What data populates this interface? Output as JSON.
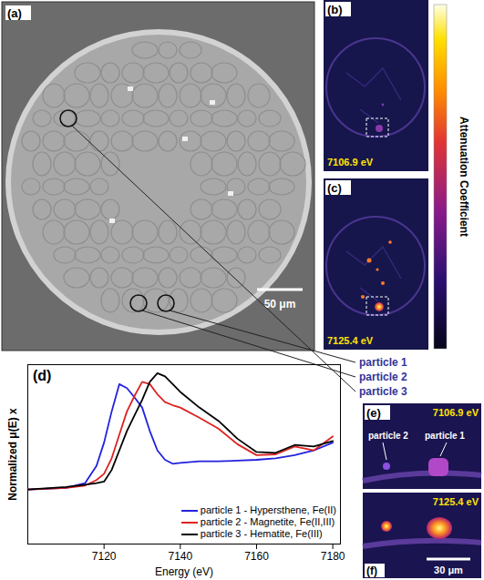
{
  "chart_data": {
    "type": "line",
    "panel_label": "(d)",
    "x_label": "Energy (eV)",
    "y_label": "Normalized μ(E) x",
    "xlim": [
      7100,
      7182
    ],
    "xticks": [
      7120,
      7140,
      7160,
      7180
    ],
    "ylim": [
      -0.7,
      1.6
    ],
    "tick_labels": "x",
    "grid": false,
    "legend": "lower right",
    "x": [
      7100,
      7110,
      7115,
      7118,
      7120,
      7122,
      7124,
      7126,
      7128,
      7130,
      7132,
      7134,
      7136,
      7138,
      7140,
      7145,
      7150,
      7155,
      7160,
      7165,
      7170,
      7175,
      7180
    ],
    "series": [
      {
        "name": "particle 1 - Hypersthene, Fe(II)",
        "color": "#2222dd",
        "values": [
          0,
          0.02,
          0.08,
          0.3,
          0.6,
          1.0,
          1.35,
          1.3,
          1.18,
          1.05,
          0.75,
          0.5,
          0.38,
          0.33,
          0.34,
          0.36,
          0.36,
          0.37,
          0.38,
          0.4,
          0.44,
          0.5,
          0.6
        ]
      },
      {
        "name": "particle 2 - Magnetite, Fe(II,III)",
        "color": "#dd2222",
        "values": [
          0,
          0.02,
          0.05,
          0.12,
          0.2,
          0.4,
          0.7,
          1.0,
          1.2,
          1.38,
          1.35,
          1.22,
          1.12,
          1.08,
          1.05,
          0.92,
          0.78,
          0.58,
          0.44,
          0.45,
          0.55,
          0.5,
          0.68
        ]
      },
      {
        "name": "particle 3 - Hematite, Fe(III)",
        "color": "#000000",
        "values": [
          0,
          0.03,
          0.06,
          0.08,
          0.1,
          0.25,
          0.5,
          0.75,
          0.95,
          1.15,
          1.38,
          1.49,
          1.45,
          1.35,
          1.25,
          1.05,
          0.88,
          0.65,
          0.48,
          0.47,
          0.57,
          0.55,
          0.62
        ]
      }
    ]
  },
  "figure": {
    "panel_a": {
      "label": "(a)",
      "scale_bar": "50 μm",
      "particles": [
        "particle 1",
        "particle 2",
        "particle 3"
      ]
    },
    "panel_b": {
      "label": "(b)",
      "energy": "7106.9 eV"
    },
    "panel_c": {
      "label": "(c)",
      "energy": "7125.4 eV"
    },
    "colorbar": {
      "label": "Attenuation Coefficient"
    },
    "panel_e": {
      "label": "(e)",
      "energy": "7106.9 eV",
      "particles": [
        "particle 2",
        "particle 1"
      ]
    },
    "panel_f": {
      "label": "(f)",
      "energy": "7125.4 eV",
      "scale_bar": "30 μm"
    }
  }
}
